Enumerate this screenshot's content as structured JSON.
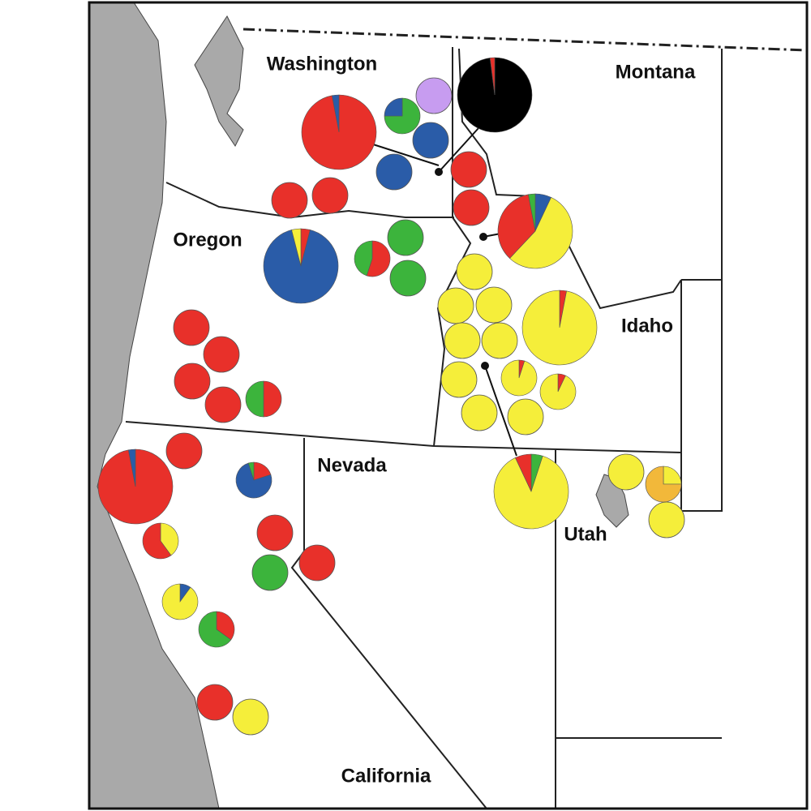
{
  "labels": {
    "washington": "Washington",
    "montana": "Montana",
    "oregon": "Oregon",
    "idaho": "Idaho",
    "nevada": "Nevada",
    "utah": "Utah",
    "california": "California"
  },
  "pies": [
    {
      "colors": [
        "#e8302a",
        "#2a5ca8"
      ],
      "values": [
        97,
        3
      ]
    },
    {
      "colors": [
        "#3cb43c",
        "#2a5ca8"
      ],
      "values": [
        75,
        25
      ]
    },
    {
      "colors": [
        "#c79cf0"
      ],
      "values": [
        100
      ]
    },
    {
      "colors": [
        "#2a5ca8"
      ],
      "values": [
        100
      ]
    },
    {
      "colors": [
        "#2a5ca8"
      ],
      "values": [
        100
      ]
    },
    {
      "colors": [
        "#000000",
        "#e8302a"
      ],
      "values": [
        98,
        2
      ]
    },
    {
      "colors": [
        "#e8302a"
      ],
      "values": [
        100
      ]
    },
    {
      "colors": [
        "#e8302a"
      ],
      "values": [
        100
      ]
    },
    {
      "colors": [
        "#e8302a"
      ],
      "values": [
        100
      ]
    },
    {
      "colors": [
        "#e8302a"
      ],
      "values": [
        100
      ]
    },
    {
      "colors": [
        "#2a5ca8",
        "#f5ee3a",
        "#e8302a",
        "#3cb43c"
      ],
      "values": [
        7,
        55,
        35,
        3
      ]
    },
    {
      "colors": [
        "#e8302a",
        "#2a5ca8",
        "#f5ee3a"
      ],
      "values": [
        4,
        92,
        4
      ]
    },
    {
      "colors": [
        "#e8302a",
        "#3cb43c"
      ],
      "values": [
        55,
        45
      ]
    },
    {
      "colors": [
        "#3cb43c"
      ],
      "values": [
        100
      ]
    },
    {
      "colors": [
        "#3cb43c"
      ],
      "values": [
        100
      ]
    },
    {
      "colors": [
        "#e8302a"
      ],
      "values": [
        100
      ]
    },
    {
      "colors": [
        "#e8302a"
      ],
      "values": [
        100
      ]
    },
    {
      "colors": [
        "#e8302a"
      ],
      "values": [
        100
      ]
    },
    {
      "colors": [
        "#e8302a"
      ],
      "values": [
        100
      ]
    },
    {
      "colors": [
        "#e8302a",
        "#3cb43c"
      ],
      "values": [
        50,
        50
      ]
    },
    {
      "colors": [
        "#f5ee3a"
      ],
      "values": [
        100
      ]
    },
    {
      "colors": [
        "#f5ee3a"
      ],
      "values": [
        100
      ]
    },
    {
      "colors": [
        "#f5ee3a"
      ],
      "values": [
        100
      ]
    },
    {
      "colors": [
        "#f5ee3a"
      ],
      "values": [
        100
      ]
    },
    {
      "colors": [
        "#f5ee3a"
      ],
      "values": [
        100
      ]
    },
    {
      "colors": [
        "#f5ee3a"
      ],
      "values": [
        100
      ]
    },
    {
      "colors": [
        "#e8302a",
        "#f5ee3a"
      ],
      "values": [
        5,
        95
      ]
    },
    {
      "colors": [
        "#e8302a",
        "#f5ee3a"
      ],
      "values": [
        7,
        93
      ]
    },
    {
      "colors": [
        "#f5ee3a"
      ],
      "values": [
        100
      ]
    },
    {
      "colors": [
        "#f5ee3a"
      ],
      "values": [
        100
      ]
    },
    {
      "colors": [
        "#e8302a",
        "#f5ee3a"
      ],
      "values": [
        3,
        97
      ]
    },
    {
      "colors": [
        "#3cb43c",
        "#f5ee3a",
        "#e8302a"
      ],
      "values": [
        5,
        88,
        7
      ]
    },
    {
      "colors": [
        "#f5ee3a"
      ],
      "values": [
        100
      ]
    },
    {
      "colors": [
        "#f5ee3a",
        "#f2b83a"
      ],
      "values": [
        25,
        75
      ]
    },
    {
      "colors": [
        "#f5ee3a"
      ],
      "values": [
        100
      ]
    },
    {
      "colors": [
        "#e8302a",
        "#2a5ca8"
      ],
      "values": [
        97,
        3
      ]
    },
    {
      "colors": [
        "#e8302a"
      ],
      "values": [
        100
      ]
    },
    {
      "colors": [
        "#e8302a",
        "#2a5ca8",
        "#3cb43c"
      ],
      "values": [
        20,
        75,
        5
      ]
    },
    {
      "colors": [
        "#e8302a"
      ],
      "values": [
        100
      ]
    },
    {
      "colors": [
        "#f5ee3a",
        "#e8302a"
      ],
      "values": [
        40,
        60
      ]
    },
    {
      "colors": [
        "#e8302a"
      ],
      "values": [
        100
      ]
    },
    {
      "colors": [
        "#3cb43c"
      ],
      "values": [
        100
      ]
    },
    {
      "colors": [
        "#2a5ca8",
        "#f5ee3a"
      ],
      "values": [
        10,
        90
      ]
    },
    {
      "colors": [
        "#e8302a",
        "#3cb43c"
      ],
      "values": [
        35,
        65
      ]
    },
    {
      "colors": [
        "#e8302a"
      ],
      "values": [
        100
      ]
    },
    {
      "colors": [
        "#f5ee3a"
      ],
      "values": [
        100
      ]
    }
  ]
}
